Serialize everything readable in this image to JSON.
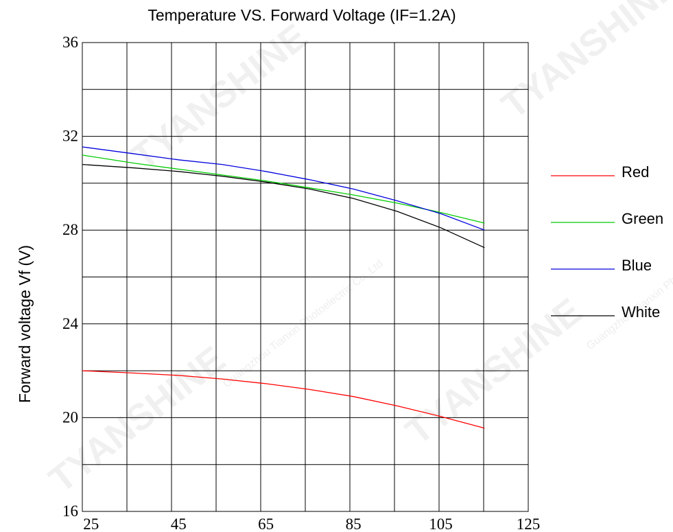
{
  "watermark": {
    "brand": "TYANSHINE",
    "company": "Guangzhou Tianxin Photoelectric Co.,Ltd"
  },
  "chart_data": {
    "type": "line",
    "title": "Temperature  VS. Forward Voltage (IF=1.2A)",
    "xlabel": "",
    "ylabel": "Forward voltage  Vf (V)",
    "xlim": [
      23,
      125
    ],
    "ylim": [
      16,
      36
    ],
    "xticks": [
      25,
      45,
      65,
      85,
      105,
      125
    ],
    "yticks": [
      16,
      20,
      24,
      28,
      32,
      36
    ],
    "grid": true,
    "legend_position": "right",
    "series": [
      {
        "name": "Red",
        "color": "#ff0000",
        "x": [
          23,
          35,
          45,
          55,
          65,
          75,
          85,
          95,
          105,
          115
        ],
        "y": [
          22.0,
          21.9,
          21.8,
          21.65,
          21.45,
          21.2,
          20.9,
          20.5,
          20.05,
          19.55
        ]
      },
      {
        "name": "Green",
        "color": "#00cc00",
        "x": [
          23,
          35,
          45,
          55,
          65,
          75,
          85,
          95,
          105,
          115
        ],
        "y": [
          31.2,
          30.85,
          30.6,
          30.35,
          30.1,
          29.8,
          29.5,
          29.15,
          28.75,
          28.3
        ]
      },
      {
        "name": "Blue",
        "color": "#0000dd",
        "x": [
          23,
          35,
          45,
          55,
          65,
          75,
          85,
          95,
          105,
          115
        ],
        "y": [
          31.55,
          31.25,
          31.0,
          30.8,
          30.5,
          30.15,
          29.75,
          29.25,
          28.7,
          28.0
        ]
      },
      {
        "name": "White",
        "color": "#000000",
        "x": [
          23,
          35,
          45,
          55,
          65,
          75,
          85,
          95,
          105,
          115
        ],
        "y": [
          30.8,
          30.65,
          30.5,
          30.3,
          30.05,
          29.75,
          29.35,
          28.8,
          28.1,
          27.25
        ]
      }
    ]
  }
}
